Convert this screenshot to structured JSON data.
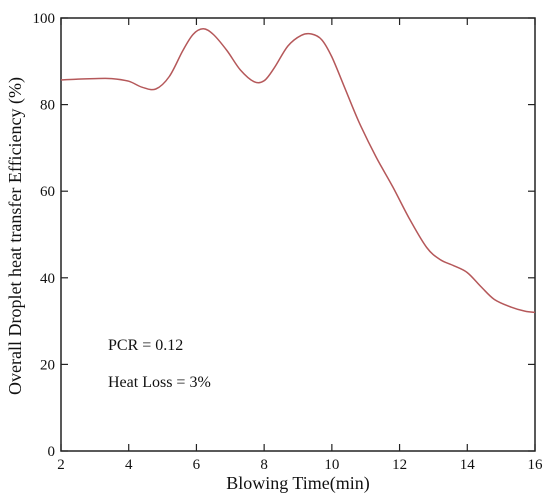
{
  "chart_data": {
    "type": "line",
    "xlabel": "Blowing Time(min)",
    "ylabel": "Overall Droplet heat transfer Efficiency (%)",
    "xlim": [
      2,
      16
    ],
    "ylim": [
      0,
      100
    ],
    "xticks": [
      2,
      4,
      6,
      8,
      10,
      12,
      14,
      16
    ],
    "yticks": [
      0,
      20,
      40,
      60,
      80,
      100
    ],
    "grid": false,
    "annotations": [
      "PCR = 0.12",
      "Heat Loss = 3%"
    ],
    "series": [
      {
        "color": "#b5585a",
        "x": [
          2.0,
          2.5,
          3.0,
          3.5,
          4.0,
          4.4,
          4.8,
          5.2,
          5.6,
          5.9,
          6.2,
          6.5,
          6.9,
          7.3,
          7.7,
          8.0,
          8.3,
          8.7,
          9.1,
          9.4,
          9.7,
          10.0,
          10.4,
          10.8,
          11.3,
          11.8,
          12.3,
          12.8,
          13.2,
          13.6,
          14.0,
          14.4,
          14.8,
          15.3,
          15.7,
          16.0
        ],
        "y": [
          85.7,
          85.9,
          86.0,
          86.0,
          85.4,
          84.0,
          83.6,
          86.5,
          92.5,
          96.2,
          97.5,
          96.2,
          92.5,
          88.0,
          85.3,
          85.5,
          88.5,
          93.5,
          96.0,
          96.3,
          95.0,
          91.0,
          83.5,
          76.0,
          68.0,
          61.0,
          53.5,
          47.0,
          44.2,
          42.8,
          41.2,
          38.0,
          35.0,
          33.2,
          32.3,
          32.0
        ]
      }
    ]
  }
}
